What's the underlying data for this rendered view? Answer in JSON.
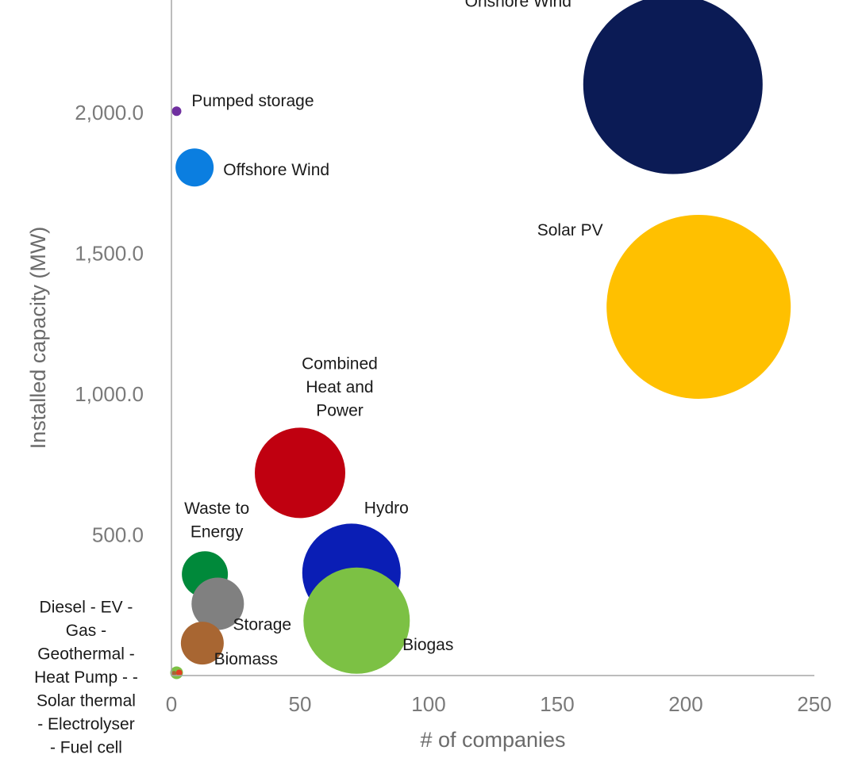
{
  "chart_data": {
    "type": "bubble",
    "xlabel": "# of companies",
    "ylabel": "Installed capacity (MW)",
    "xlim": [
      0,
      250
    ],
    "ylim": [
      0,
      2400
    ],
    "xticks": [
      "0",
      "50",
      "100",
      "150",
      "200",
      "250"
    ],
    "yticks": [
      "500.0",
      "1,000.0",
      "1,500.0",
      "2,000.0"
    ],
    "grid": false,
    "legend": "none",
    "series": [
      {
        "label": "Onshore Wind",
        "x": 195,
        "y": 2100,
        "size": 113,
        "color": "#0b1b55"
      },
      {
        "label": "Solar PV",
        "x": 205,
        "y": 1310,
        "size": 116,
        "color": "#ffc000"
      },
      {
        "label": "Pumped storage",
        "x": 2,
        "y": 2005,
        "size": 6,
        "color": "#7030a0"
      },
      {
        "label": "Offshore Wind",
        "x": 9,
        "y": 1805,
        "size": 24,
        "color": "#0b7ee0"
      },
      {
        "label": "Combined Heat and Power",
        "x": 50,
        "y": 720,
        "size": 57,
        "color": "#c00010"
      },
      {
        "label": "Hydro",
        "x": 70,
        "y": 365,
        "size": 62,
        "color": "#0a1eb5"
      },
      {
        "label": "Biogas",
        "x": 72,
        "y": 195,
        "size": 67,
        "color": "#7cc144"
      },
      {
        "label": "Waste to Energy",
        "x": 13,
        "y": 360,
        "size": 29,
        "color": "#00893a"
      },
      {
        "label": "Storage",
        "x": 18,
        "y": 255,
        "size": 33,
        "color": "#808080"
      },
      {
        "label": "Biomass",
        "x": 12,
        "y": 115,
        "size": 27,
        "color": "#a86632"
      },
      {
        "label": "Diesel - EV - Gas - Geothermal - Heat Pump - Solar thermal - Electrolyser - Fuel cell",
        "x": 2,
        "y": 10,
        "size": 8,
        "color": "#7cc144"
      }
    ],
    "small_markers": [
      {
        "x": 3,
        "y": 10,
        "size": 4,
        "color": "#e04020"
      },
      {
        "x": 1,
        "y": 8,
        "size": 3,
        "color": "#a86632"
      }
    ],
    "label_lines": {
      "Combined Heat and Power": [
        "Combined",
        "Heat and",
        "Power"
      ],
      "Waste to Energy": [
        "Waste to",
        "Energy"
      ],
      "Diesel - EV - Gas - Geothermal - Heat Pump - Solar thermal - Electrolyser - Fuel cell": [
        "Diesel - EV -",
        "Gas -",
        "Geothermal -",
        "Heat Pump - -",
        "Solar thermal",
        "- Electrolyser",
        "- Fuel cell"
      ]
    }
  }
}
